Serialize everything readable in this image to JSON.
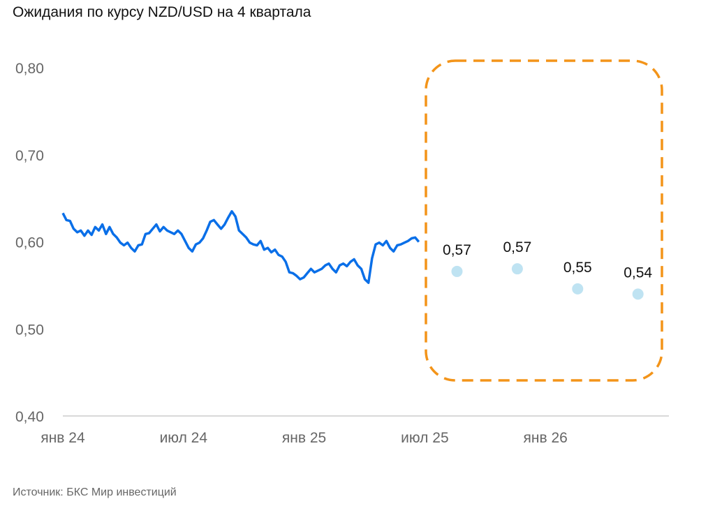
{
  "chart_data": {
    "type": "line",
    "title": "Ожидания по курсу NZD/USD на 4 квартала",
    "source": "Источник: БКС Мир инвестиций",
    "xlabel": "",
    "ylabel": "",
    "ylim": [
      0.4,
      0.8
    ],
    "yticks": [
      0.4,
      0.5,
      0.6,
      0.7,
      0.8
    ],
    "ytick_labels": [
      "0,40",
      "0,50",
      "0,60",
      "0,70",
      "0,80"
    ],
    "xunit": "months since Jan 2024",
    "xlim": [
      0,
      30.3
    ],
    "xticks": [
      0,
      6,
      12,
      18,
      24
    ],
    "xtick_labels": [
      "янв 24",
      "июл 24",
      "янв 25",
      "июл 25",
      "янв 26"
    ],
    "grid": false,
    "colors": {
      "line": "#0a6fe8",
      "forecast": "#bfe3f2",
      "highlight": "#f39419",
      "axis": "#cccccc"
    },
    "series": [
      {
        "name": "NZD/USD",
        "x_start": 0,
        "x_end": 17.7,
        "values": [
          0.633,
          0.625,
          0.624,
          0.615,
          0.611,
          0.613,
          0.607,
          0.613,
          0.608,
          0.617,
          0.613,
          0.62,
          0.609,
          0.617,
          0.609,
          0.605,
          0.599,
          0.596,
          0.599,
          0.593,
          0.589,
          0.596,
          0.597,
          0.609,
          0.61,
          0.615,
          0.62,
          0.612,
          0.617,
          0.613,
          0.611,
          0.609,
          0.613,
          0.609,
          0.601,
          0.593,
          0.589,
          0.597,
          0.599,
          0.604,
          0.613,
          0.623,
          0.625,
          0.62,
          0.615,
          0.62,
          0.628,
          0.635,
          0.629,
          0.613,
          0.609,
          0.605,
          0.599,
          0.597,
          0.596,
          0.601,
          0.591,
          0.593,
          0.588,
          0.591,
          0.585,
          0.583,
          0.577,
          0.565,
          0.564,
          0.561,
          0.557,
          0.559,
          0.564,
          0.569,
          0.565,
          0.567,
          0.569,
          0.573,
          0.575,
          0.569,
          0.565,
          0.573,
          0.575,
          0.572,
          0.577,
          0.58,
          0.573,
          0.569,
          0.557,
          0.553,
          0.581,
          0.597,
          0.599,
          0.596,
          0.601,
          0.593,
          0.589,
          0.596,
          0.597,
          0.599,
          0.601,
          0.604,
          0.605,
          0.6
        ]
      },
      {
        "name": "Прогноз",
        "type": "scatter",
        "x": [
          19.6,
          22.6,
          25.6,
          28.6
        ],
        "values": [
          0.566,
          0.569,
          0.546,
          0.54
        ],
        "labels": [
          "0,57",
          "0,57",
          "0,55",
          "0,54"
        ]
      }
    ],
    "annotations": [
      "dashed rounded box highlighting forecast"
    ]
  }
}
